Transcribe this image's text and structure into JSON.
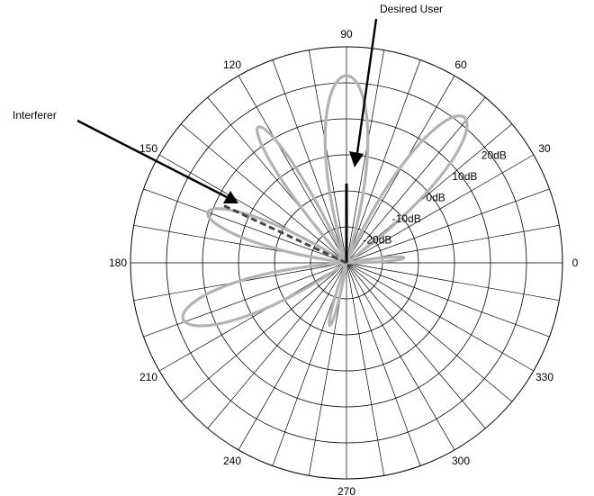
{
  "chart_data": {
    "type": "polar",
    "angle_ticks": [
      {
        "angle": 0,
        "label": "0"
      },
      {
        "angle": 30,
        "label": "30"
      },
      {
        "angle": 60,
        "label": "60"
      },
      {
        "angle": 90,
        "label": "90"
      },
      {
        "angle": 120,
        "label": "120"
      },
      {
        "angle": 150,
        "label": "150"
      },
      {
        "angle": 180,
        "label": "180"
      },
      {
        "angle": 210,
        "label": "210"
      },
      {
        "angle": 240,
        "label": "240"
      },
      {
        "angle": 270,
        "label": "270"
      },
      {
        "angle": 300,
        "label": "300"
      },
      {
        "angle": 330,
        "label": "330"
      }
    ],
    "radial_ticks": [
      {
        "value": -20,
        "label": "-20dB"
      },
      {
        "value": -10,
        "label": "-10dB"
      },
      {
        "value": 0,
        "label": "0dB"
      },
      {
        "value": 10,
        "label": "10dB"
      },
      {
        "value": 20,
        "label": "20dB"
      }
    ],
    "radial_range": [
      -30,
      30
    ],
    "spoke_step_deg": 10,
    "pattern_color": "#b3b3b3",
    "lobes": [
      {
        "center_deg": 90,
        "width_deg": 30,
        "peak_db": 22
      },
      {
        "center_deg": 51,
        "width_deg": 26,
        "peak_db": 22
      },
      {
        "center_deg": 123,
        "width_deg": 16,
        "peak_db": 15
      },
      {
        "center_deg": 160,
        "width_deg": 24,
        "peak_db": 11
      },
      {
        "center_deg": 199,
        "width_deg": 28,
        "peak_db": 18
      },
      {
        "center_deg": 255,
        "width_deg": 16,
        "peak_db": -12
      },
      {
        "center_deg": 5,
        "width_deg": 16,
        "peak_db": -14
      }
    ],
    "desired_user_deg": 90,
    "interferer_deg": 155
  },
  "annotations": {
    "desired_user": "Desired User",
    "interferer": "Interferer"
  }
}
